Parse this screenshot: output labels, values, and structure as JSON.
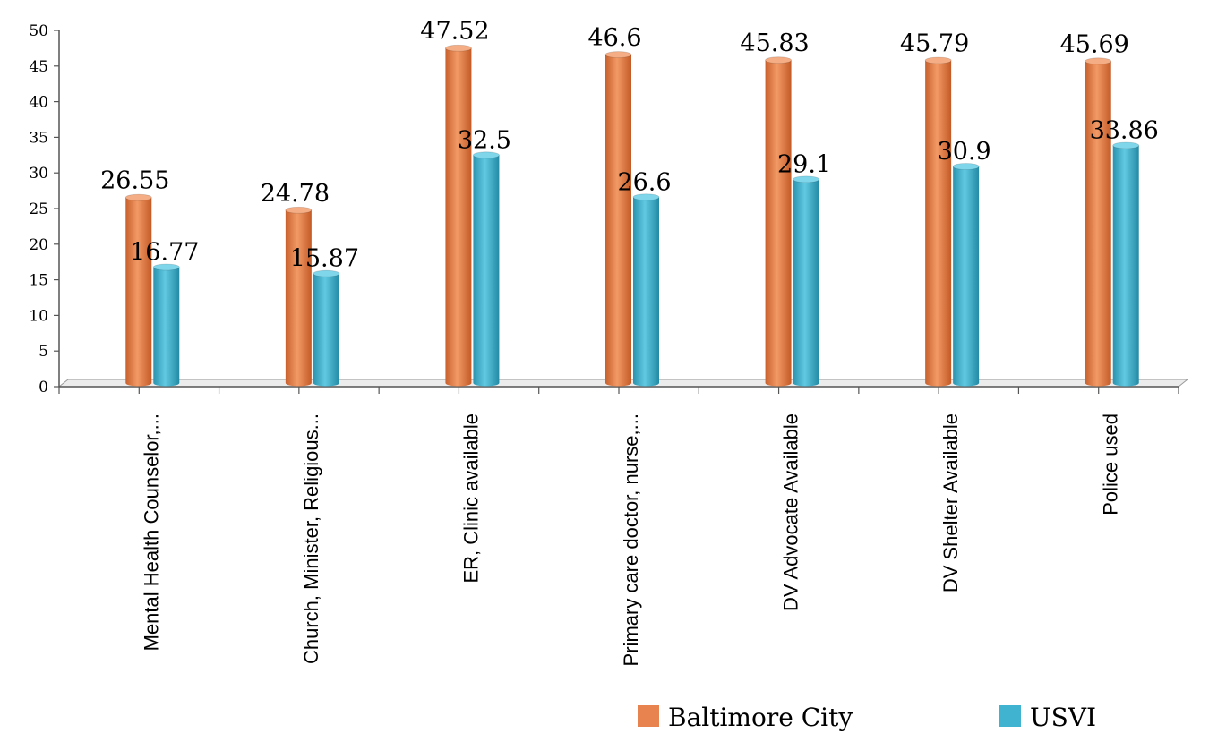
{
  "chart_data": {
    "type": "bar",
    "categories": [
      "Mental Health Counselor,...",
      "Church, Minister, Religious...",
      "ER, Clinic available",
      "Primary care doctor, nurse,...",
      "DV Advocate Available",
      "DV Shelter Available",
      "Police used"
    ],
    "series": [
      {
        "name": "Baltimore City",
        "color": "#e8834f",
        "values": [
          26.55,
          24.78,
          47.52,
          46.6,
          45.83,
          45.79,
          45.69
        ]
      },
      {
        "name": "USVI",
        "color": "#3fb3cf",
        "values": [
          16.77,
          15.87,
          32.5,
          26.6,
          29.1,
          30.9,
          33.86
        ]
      }
    ],
    "data_labels": [
      [
        "26.55",
        "24.78",
        "47.52",
        "46.6",
        "45.83",
        "45.79",
        "45.69"
      ],
      [
        "16.77",
        "15.87",
        "32.5",
        "26.6",
        "29.1",
        "30.9",
        "33.86"
      ]
    ],
    "yticks": [
      "0",
      "5",
      "10",
      "15",
      "20",
      "25",
      "30",
      "35",
      "40",
      "45",
      "50"
    ],
    "ylim": [
      0,
      50
    ],
    "grid": false,
    "legend_position": "bottom-right",
    "title": "",
    "xlabel": "",
    "ylabel": ""
  }
}
